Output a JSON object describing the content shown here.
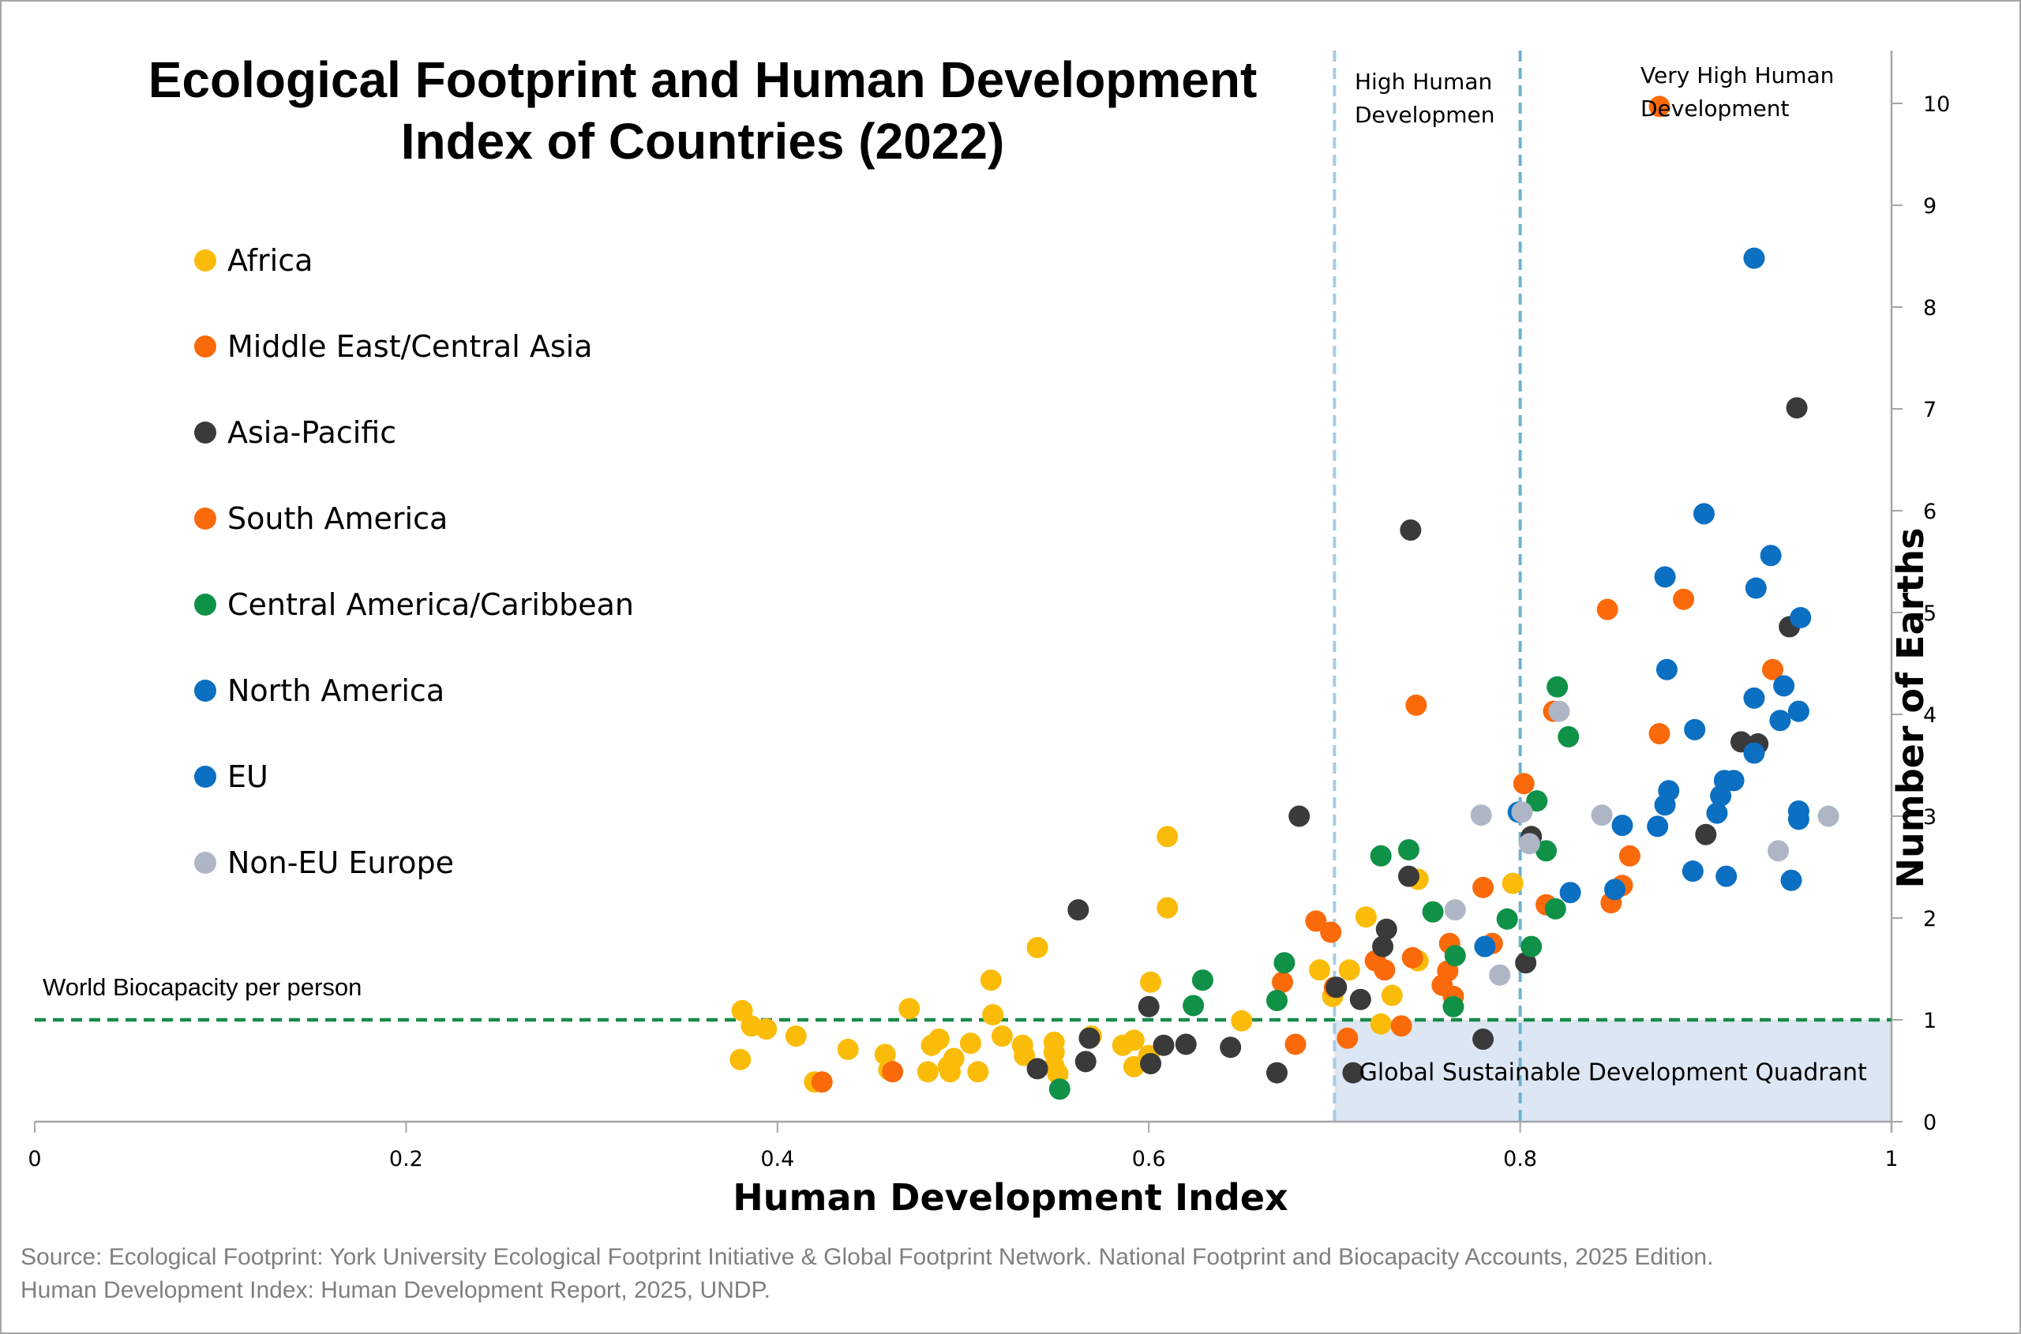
{
  "chart_data": {
    "type": "scatter",
    "title": "Ecological Footprint and Human Development Index of Countries (2022)",
    "title_lines": [
      "Ecological Footprint and Human Development",
      "Index of Countries (2022)"
    ],
    "xlabel": "Human Development Index",
    "ylabel": "Number of Earths",
    "xlim": [
      0,
      1
    ],
    "ylim": [
      0,
      10.5
    ],
    "x_ticks": [
      0,
      0.2,
      0.4,
      0.6,
      0.8,
      1
    ],
    "x_tick_labels": [
      "0",
      "0.2",
      "0.4",
      "0.6",
      "0.8",
      "1"
    ],
    "y_ticks": [
      0,
      1,
      2,
      3,
      4,
      5,
      6,
      7,
      8,
      9,
      10
    ],
    "y_tick_labels": [
      "0",
      "1",
      "2",
      "3",
      "4",
      "5",
      "6",
      "7",
      "8",
      "9",
      "10"
    ],
    "y_axis_side": "right",
    "grid": false,
    "legend_position": "left",
    "reference_lines": {
      "horizontal": {
        "y": 1,
        "label": "World Biocapacity per person",
        "color": "#1a8a4a"
      },
      "vertical": [
        {
          "x": 0.7,
          "label": "High Human Developmen",
          "label_lines": [
            "High Human",
            "Developmen"
          ],
          "color": "#a9cbe4"
        },
        {
          "x": 0.8,
          "label": "Very High Human Development",
          "label_lines": [
            "Very High Human",
            "Development"
          ],
          "color": "#6ab4cf"
        }
      ]
    },
    "shaded_region": {
      "x": [
        0.7,
        1
      ],
      "y": [
        0,
        1
      ],
      "label": "Global Sustainable Development Quadrant",
      "color": "#dde6f3"
    },
    "series": [
      {
        "name": "Africa",
        "color": "#fbbc09",
        "points": [
          [
            0.381,
            1.09
          ],
          [
            0.38,
            0.61
          ],
          [
            0.386,
            0.94
          ],
          [
            0.394,
            0.91
          ],
          [
            0.41,
            0.84
          ],
          [
            0.42,
            0.39
          ],
          [
            0.438,
            0.71
          ],
          [
            0.458,
            0.66
          ],
          [
            0.46,
            0.51
          ],
          [
            0.471,
            1.11
          ],
          [
            0.481,
            0.49
          ],
          [
            0.483,
            0.75
          ],
          [
            0.487,
            0.81
          ],
          [
            0.492,
            0.54
          ],
          [
            0.493,
            0.49
          ],
          [
            0.495,
            0.62
          ],
          [
            0.504,
            0.77
          ],
          [
            0.508,
            0.49
          ],
          [
            0.515,
            1.39
          ],
          [
            0.516,
            1.05
          ],
          [
            0.521,
            0.84
          ],
          [
            0.532,
            0.75
          ],
          [
            0.533,
            0.65
          ],
          [
            0.54,
            1.71
          ],
          [
            0.549,
            0.78
          ],
          [
            0.549,
            0.68
          ],
          [
            0.549,
            0.54
          ],
          [
            0.551,
            0.47
          ],
          [
            0.569,
            0.84
          ],
          [
            0.586,
            0.75
          ],
          [
            0.592,
            0.8
          ],
          [
            0.592,
            0.54
          ],
          [
            0.601,
            1.37
          ],
          [
            0.6,
            0.65
          ],
          [
            0.61,
            2.8
          ],
          [
            0.61,
            2.1
          ],
          [
            0.65,
            0.99
          ],
          [
            0.692,
            1.49
          ],
          [
            0.699,
            1.23
          ],
          [
            0.708,
            1.49
          ],
          [
            0.717,
            2.01
          ],
          [
            0.725,
            0.96
          ],
          [
            0.731,
            1.24
          ],
          [
            0.745,
            2.38
          ],
          [
            0.745,
            1.58
          ],
          [
            0.796,
            2.34
          ]
        ]
      },
      {
        "name": "Middle East/Central Asia",
        "color": "#fa6a0a",
        "points": [
          [
            0.424,
            0.39
          ],
          [
            0.462,
            0.49
          ],
          [
            0.679,
            0.76
          ],
          [
            0.69,
            1.97
          ],
          [
            0.698,
            1.86
          ],
          [
            0.7,
            1.32
          ],
          [
            0.722,
            1.58
          ],
          [
            0.727,
            1.49
          ],
          [
            0.736,
            0.94
          ],
          [
            0.742,
            1.61
          ],
          [
            0.744,
            4.09
          ],
          [
            0.761,
            1.48
          ],
          [
            0.762,
            1.75
          ],
          [
            0.764,
            1.23
          ],
          [
            0.785,
            1.75
          ],
          [
            0.802,
            3.32
          ],
          [
            0.818,
            4.03
          ],
          [
            0.847,
            5.03
          ],
          [
            0.849,
            2.15
          ],
          [
            0.875,
            3.81
          ],
          [
            0.875,
            9.97
          ],
          [
            0.888,
            5.13
          ],
          [
            0.936,
            4.44
          ]
        ]
      },
      {
        "name": "Asia-Pacific",
        "color": "#3a3a3a",
        "points": [
          [
            0.54,
            0.52
          ],
          [
            0.562,
            2.08
          ],
          [
            0.566,
            0.59
          ],
          [
            0.568,
            0.82
          ],
          [
            0.6,
            1.13
          ],
          [
            0.601,
            0.57
          ],
          [
            0.608,
            0.75
          ],
          [
            0.62,
            0.76
          ],
          [
            0.644,
            0.73
          ],
          [
            0.669,
            0.48
          ],
          [
            0.681,
            3.0
          ],
          [
            0.701,
            1.32
          ],
          [
            0.71,
            0.48
          ],
          [
            0.714,
            1.2
          ],
          [
            0.726,
            1.72
          ],
          [
            0.728,
            1.89
          ],
          [
            0.74,
            2.41
          ],
          [
            0.741,
            5.81
          ],
          [
            0.78,
            0.81
          ],
          [
            0.803,
            1.56
          ],
          [
            0.806,
            2.8
          ],
          [
            0.9,
            2.82
          ],
          [
            0.919,
            3.73
          ],
          [
            0.928,
            3.71
          ],
          [
            0.945,
            4.86
          ],
          [
            0.949,
            7.01
          ]
        ]
      },
      {
        "name": "South America",
        "color": "#fa6a0a",
        "points": [
          [
            0.672,
            1.37
          ],
          [
            0.707,
            0.82
          ],
          [
            0.758,
            1.34
          ],
          [
            0.78,
            2.3
          ],
          [
            0.814,
            2.13
          ],
          [
            0.855,
            2.32
          ],
          [
            0.859,
            2.61
          ]
        ]
      },
      {
        "name": "Central America/Caribbean",
        "color": "#0f9147",
        "points": [
          [
            0.552,
            0.32
          ],
          [
            0.624,
            1.14
          ],
          [
            0.629,
            1.39
          ],
          [
            0.669,
            1.19
          ],
          [
            0.673,
            1.56
          ],
          [
            0.725,
            2.61
          ],
          [
            0.74,
            2.67
          ],
          [
            0.753,
            2.06
          ],
          [
            0.764,
            1.13
          ],
          [
            0.765,
            1.63
          ],
          [
            0.793,
            1.99
          ],
          [
            0.806,
            1.72
          ],
          [
            0.809,
            3.15
          ],
          [
            0.814,
            2.66
          ],
          [
            0.819,
            2.09
          ],
          [
            0.82,
            4.27
          ],
          [
            0.826,
            3.78
          ]
        ]
      },
      {
        "name": "North America",
        "color": "#0b6fc2",
        "points": [
          [
            0.894,
            3.85
          ],
          [
            0.926,
            8.48
          ],
          [
            0.95,
            4.03
          ]
        ]
      },
      {
        "name": "EU",
        "color": "#0b6fc2",
        "points": [
          [
            0.781,
            1.72
          ],
          [
            0.799,
            3.04
          ],
          [
            0.827,
            2.25
          ],
          [
            0.851,
            2.28
          ],
          [
            0.855,
            2.91
          ],
          [
            0.874,
            2.9
          ],
          [
            0.878,
            3.11
          ],
          [
            0.88,
            3.25
          ],
          [
            0.879,
            4.44
          ],
          [
            0.878,
            5.35
          ],
          [
            0.893,
            2.46
          ],
          [
            0.899,
            5.97
          ],
          [
            0.906,
            3.03
          ],
          [
            0.908,
            3.2
          ],
          [
            0.91,
            3.35
          ],
          [
            0.911,
            2.41
          ],
          [
            0.915,
            3.35
          ],
          [
            0.926,
            3.62
          ],
          [
            0.926,
            4.16
          ],
          [
            0.927,
            5.24
          ],
          [
            0.935,
            5.56
          ],
          [
            0.94,
            3.94
          ],
          [
            0.942,
            4.28
          ],
          [
            0.946,
            2.37
          ],
          [
            0.95,
            3.05
          ],
          [
            0.95,
            2.97
          ],
          [
            0.951,
            4.95
          ]
        ]
      },
      {
        "name": "Non-EU Europe",
        "color": "#aeb6c6",
        "points": [
          [
            0.765,
            2.08
          ],
          [
            0.779,
            3.01
          ],
          [
            0.789,
            1.44
          ],
          [
            0.801,
            3.04
          ],
          [
            0.805,
            2.73
          ],
          [
            0.821,
            4.03
          ],
          [
            0.844,
            3.01
          ],
          [
            0.939,
            2.66
          ],
          [
            0.966,
            3.0
          ]
        ]
      }
    ]
  },
  "legend": [
    {
      "label": "Africa",
      "color": "#fbbc09"
    },
    {
      "label": "Middle East/Central Asia",
      "color": "#fa6a0a"
    },
    {
      "label": "Asia-Pacific",
      "color": "#3a3a3a"
    },
    {
      "label": "South America",
      "color": "#fa6a0a"
    },
    {
      "label": "Central America/Caribbean",
      "color": "#0f9147"
    },
    {
      "label": "North America",
      "color": "#0b6fc2"
    },
    {
      "label": "EU",
      "color": "#0b6fc2"
    },
    {
      "label": "Non-EU Europe",
      "color": "#aeb6c6"
    }
  ],
  "caption": {
    "line1": "Source: Ecological Footprint: York University Ecological Footprint Initiative & Global Footprint Network. National Footprint and Biocapacity Accounts, 2025 Edition.",
    "line2": "Human Development Index: Human Development Report, 2025, UNDP."
  }
}
